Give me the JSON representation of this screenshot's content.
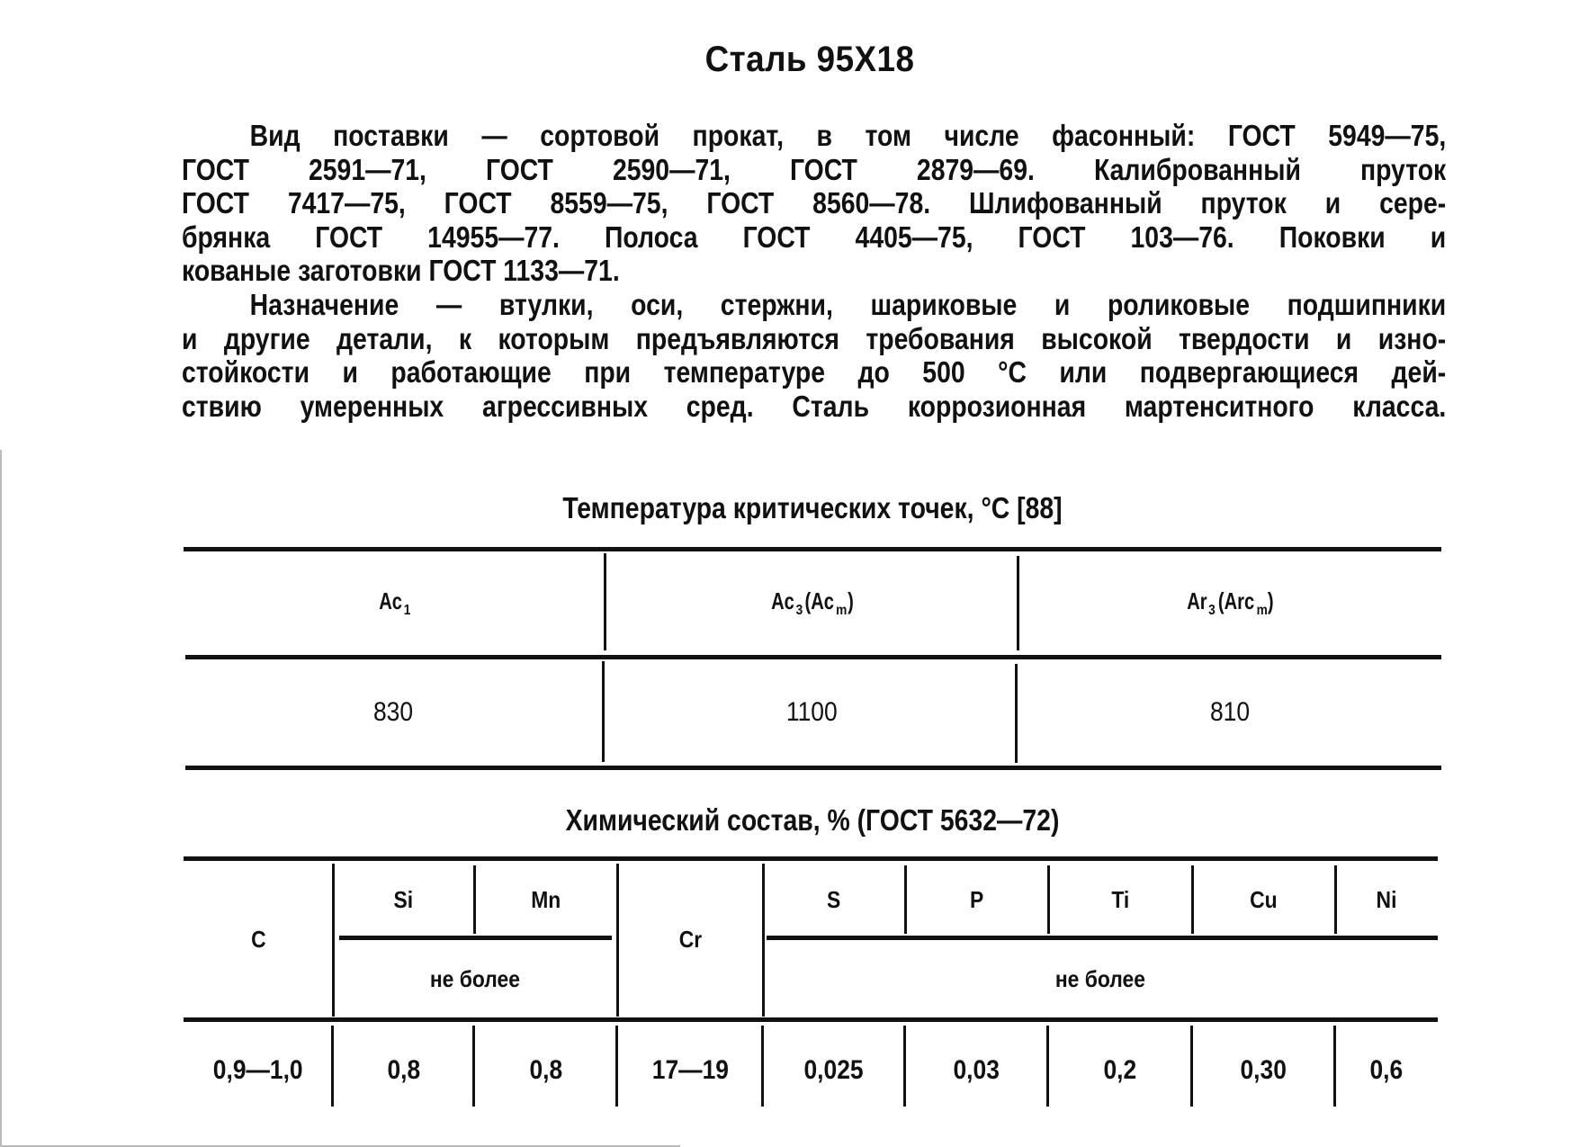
{
  "title": "Сталь 95Х18",
  "paragraphs": [
    {
      "lines": [
        "Вид поставки — сортовой прокат, в том числе фасонный: ГОСТ 5949—75,",
        "ГОСТ 2591—71, ГОСТ 2590—71, ГОСТ 2879—69. Калиброванный пруток",
        "ГОСТ 7417—75, ГОСТ 8559—75, ГОСТ 8560—78. Шлифованный пруток и сере-",
        "брянка ГОСТ 14955—77. Полоса ГОСТ 4405—75, ГОСТ 103—76. Поковки и",
        "кованые заготовки ГОСТ 1133—71."
      ]
    },
    {
      "lines": [
        "Назначение — втулки, оси, стержни, шариковые и роликовые подшипники",
        "и другие детали, к которым предъявляются требования высокой твердости и изно-",
        "стойкости и работающие при температуре до 500 °С или подвергающиеся дей-",
        "ствию умеренных агрессивных сред. Сталь коррозионная мартенситного класса."
      ]
    }
  ],
  "critical_points": {
    "caption": "Температура критических точек, °С [88]",
    "headers": [
      {
        "main": "Ac",
        "sub": "1",
        "extra": ""
      },
      {
        "main": "Ac",
        "sub": "3",
        "extra": " (Ac",
        "extra_sub": "m",
        "close": ")"
      },
      {
        "main": "Ar",
        "sub": "3",
        "extra": " (Arc",
        "extra_sub": "m",
        "close": ")"
      }
    ],
    "values": [
      "830",
      "1100",
      "810"
    ]
  },
  "chemical": {
    "caption": "Химический состав, % (ГОСТ 5632—72)",
    "headers": [
      "C",
      "Si",
      "Mn",
      "Cr",
      "S",
      "P",
      "Ti",
      "Cu",
      "Ni"
    ],
    "not_more_1": "не более",
    "not_more_2": "не более",
    "values": [
      "0,9—1,0",
      "0,8",
      "0,8",
      "17—19",
      "0,025",
      "0,03",
      "0,2",
      "0,30",
      "0,6"
    ]
  }
}
